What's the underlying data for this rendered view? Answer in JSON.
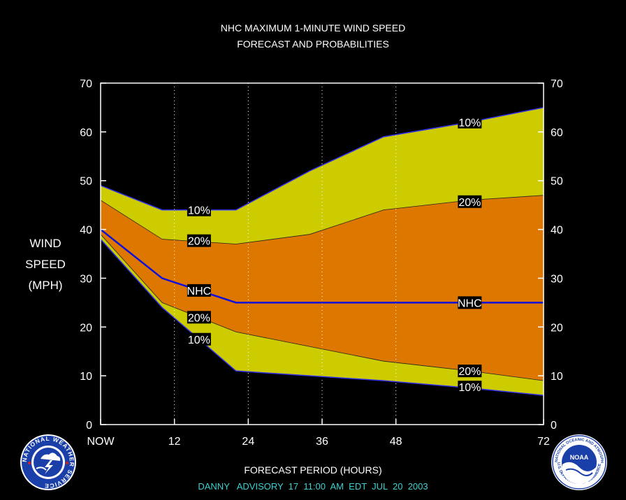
{
  "chart_data": {
    "type": "area",
    "title": "NHC MAXIMUM 1-MINUTE WIND SPEED",
    "subtitle": "FORECAST AND PROBABILITIES",
    "ylabel_lines": [
      "WIND",
      "SPEED",
      "(MPH)"
    ],
    "xlabel": "FORECAST PERIOD (HOURS)",
    "ylim": [
      0,
      70
    ],
    "yticks": [
      0,
      10,
      20,
      30,
      40,
      50,
      60,
      70
    ],
    "xlim": [
      0,
      72
    ],
    "xticks": [
      {
        "x": 0,
        "label": "NOW"
      },
      {
        "x": 12,
        "label": "12"
      },
      {
        "x": 24,
        "label": "24"
      },
      {
        "x": 36,
        "label": "36"
      },
      {
        "x": 48,
        "label": "48"
      },
      {
        "x": 72,
        "label": "72"
      }
    ],
    "grid_x": [
      12,
      24,
      36,
      48
    ],
    "x": [
      0,
      10,
      22,
      34,
      46,
      60,
      72
    ],
    "series": [
      {
        "name": "10%",
        "role": "upper",
        "values": [
          49,
          44,
          44,
          52,
          59,
          62,
          65
        ]
      },
      {
        "name": "20%",
        "role": "upper",
        "values": [
          46,
          38,
          37,
          39,
          44,
          46,
          47
        ]
      },
      {
        "name": "NHC",
        "role": "forecast",
        "values": [
          40,
          30,
          25,
          25,
          25,
          25,
          25
        ]
      },
      {
        "name": "20%",
        "role": "lower",
        "values": [
          39,
          25,
          19,
          16,
          13,
          11,
          9
        ]
      },
      {
        "name": "10%",
        "role": "lower",
        "values": [
          38,
          24,
          11,
          10,
          9,
          7.5,
          6
        ]
      }
    ],
    "annotations": [
      {
        "text": "10%",
        "x": 16,
        "y": 44
      },
      {
        "text": "20%",
        "x": 16,
        "y": 37.7
      },
      {
        "text": "NHC",
        "x": 16,
        "y": 27.5
      },
      {
        "text": "20%",
        "x": 16,
        "y": 22
      },
      {
        "text": "10%",
        "x": 16,
        "y": 17.5
      },
      {
        "text": "10%",
        "x": 60,
        "y": 62
      },
      {
        "text": "20%",
        "x": 60,
        "y": 45.7
      },
      {
        "text": "NHC",
        "x": 60,
        "y": 25
      },
      {
        "text": "20%",
        "x": 60,
        "y": 11
      },
      {
        "text": "10%",
        "x": 60,
        "y": 7.7
      }
    ],
    "colors": {
      "background": "#000000",
      "band_10": "#cccc00",
      "band_20": "#dd7700",
      "nhc_line": "#1010dd",
      "outer_edge": "#3030ee",
      "axis": "#ffffff",
      "label_bg": "#000000",
      "label_text": "#ffffff"
    }
  },
  "footer": {
    "text": "DANNY   ADVISORY  17  11:00  AM  EDT  JUL  20  2003",
    "color": "#3fd0d0"
  },
  "logos": {
    "left": "nws-logo-icon",
    "right": "noaa-logo-icon",
    "left_text": "NATIONAL WEATHER SERVICE",
    "right_text": "NATIONAL OCEANIC AND ATMOSPHERIC ADMINISTRATION",
    "right_center": "NOAA",
    "right_bottom": "U.S. DEPARTMENT OF COMMERCE"
  }
}
